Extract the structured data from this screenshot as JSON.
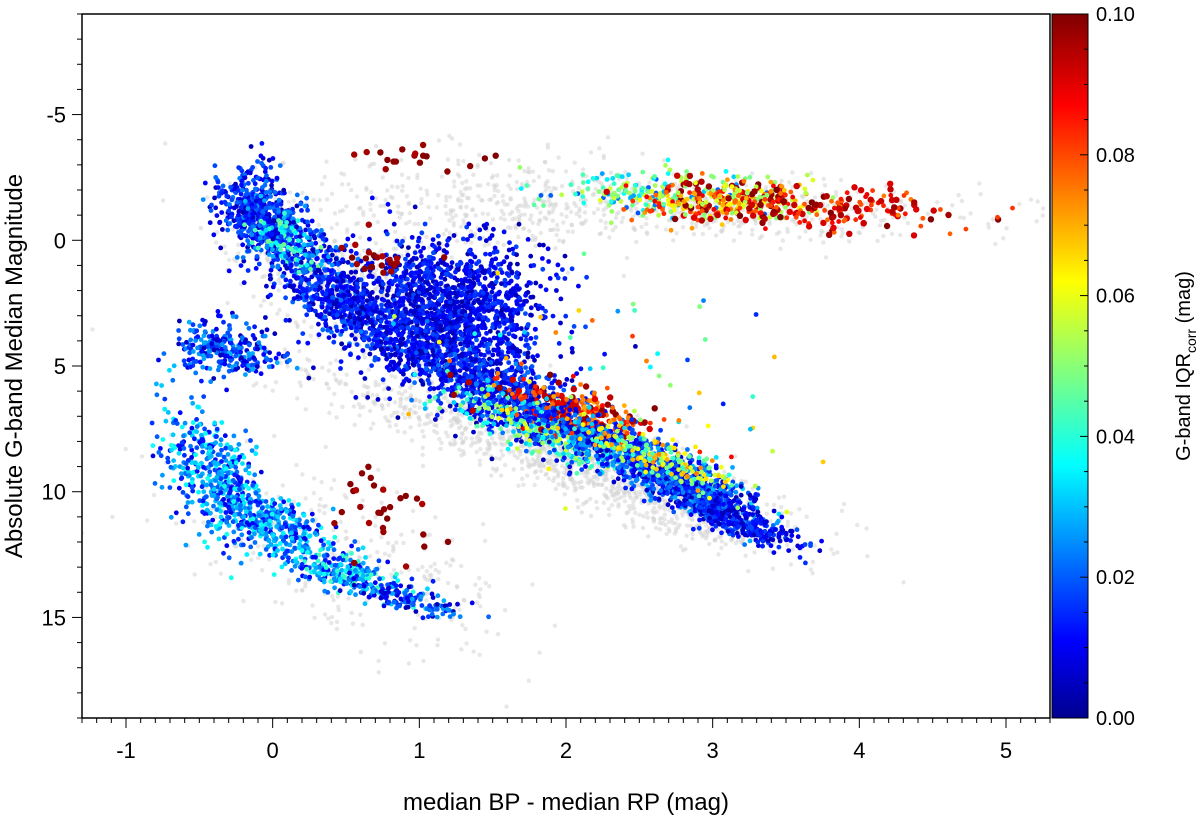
{
  "chart_data": {
    "type": "scatter",
    "xlabel": "median BP - median RP (mag)",
    "ylabel": "Absolute G-band Median Magnitude",
    "xlim": [
      -1.3,
      5.3
    ],
    "ylim": [
      19,
      -9
    ],
    "y_inverted": true,
    "grid": false,
    "x_ticks": [
      -1,
      0,
      1,
      2,
      3,
      4,
      5
    ],
    "x_tick_labels": [
      "-1",
      "0",
      "1",
      "2",
      "3",
      "4",
      "5"
    ],
    "y_ticks": [
      -5,
      0,
      5,
      10,
      15
    ],
    "y_tick_labels": [
      "-5",
      "0",
      "5",
      "10",
      "15"
    ],
    "colorbar": {
      "label_main": "G-band IQR",
      "label_sub": "corr",
      "label_unit": " (mag)",
      "range": [
        0.0,
        0.1
      ],
      "ticks": [
        0.0,
        0.02,
        0.04,
        0.06,
        0.08,
        0.1
      ],
      "tick_labels": [
        "0.00",
        "0.02",
        "0.04",
        "0.06",
        "0.08",
        "0.10"
      ],
      "colormap": "jet"
    },
    "background_color": "#d4d4d4",
    "series": [
      {
        "regions": [
          {
            "x": 1.8,
            "y": 8.0,
            "sx": 0.75,
            "sy": 1.4,
            "rho": 0.85,
            "iqr": [
              0.005,
              0.03
            ],
            "n": 900,
            "layer": "bg"
          },
          {
            "x": 2.7,
            "y": 10.5,
            "sx": 0.5,
            "sy": 1.1,
            "rho": 0.8,
            "iqr": [
              0.005,
              0.03
            ],
            "n": 500,
            "layer": "bg"
          },
          {
            "x": 0.6,
            "y": 2.0,
            "sx": 0.45,
            "sy": 1.8,
            "rho": 0.6,
            "iqr": [
              0.005,
              0.03
            ],
            "n": 600,
            "layer": "bg"
          },
          {
            "x": 1.6,
            "y": -1.5,
            "sx": 0.6,
            "sy": 1.0,
            "rho": 0.0,
            "iqr": [
              0.005,
              0.03
            ],
            "n": 350,
            "layer": "bg"
          },
          {
            "x": 3.2,
            "y": -1.2,
            "sx": 0.9,
            "sy": 0.6,
            "rho": 0.0,
            "iqr": [
              0.005,
              0.03
            ],
            "n": 400,
            "layer": "bg"
          },
          {
            "x": 0.5,
            "y": 12.5,
            "sx": 0.6,
            "sy": 1.8,
            "rho": 0.6,
            "iqr": [
              0.005,
              0.03
            ],
            "n": 300,
            "layer": "bg"
          },
          {
            "x": -0.1,
            "y": -1.2,
            "sx": 0.13,
            "sy": 0.8,
            "rho": 0.2,
            "iqr": [
              0.005,
              0.025
            ],
            "n": 450
          },
          {
            "x": 0.15,
            "y": 0.3,
            "sx": 0.2,
            "sy": 0.9,
            "rho": 0.7,
            "iqr": [
              0.005,
              0.03
            ],
            "n": 380
          },
          {
            "x": 0.08,
            "y": 0.0,
            "sx": 0.12,
            "sy": 0.6,
            "rho": 0.5,
            "iqr": [
              0.03,
              0.05
            ],
            "n": 70
          },
          {
            "x": 0.5,
            "y": 2.8,
            "sx": 0.25,
            "sy": 0.9,
            "rho": 0.75,
            "iqr": [
              0.005,
              0.025
            ],
            "n": 420
          },
          {
            "x": 1.15,
            "y": 3.3,
            "sx": 0.35,
            "sy": 1.5,
            "rho": 0.3,
            "iqr": [
              0.003,
              0.02
            ],
            "n": 1300
          },
          {
            "x": 1.3,
            "y": 2.0,
            "sx": 0.3,
            "sy": 1.0,
            "rho": 0.0,
            "iqr": [
              0.005,
              0.02
            ],
            "n": 420
          },
          {
            "x": 1.7,
            "y": 6.5,
            "sx": 0.4,
            "sy": 1.2,
            "rho": 0.8,
            "iqr": [
              0.005,
              0.025
            ],
            "n": 800
          },
          {
            "x": 1.85,
            "y": 7.6,
            "sx": 0.3,
            "sy": 0.8,
            "rho": 0.8,
            "iqr": [
              0.03,
              0.06
            ],
            "n": 260
          },
          {
            "x": 2.05,
            "y": 6.8,
            "sx": 0.28,
            "sy": 0.6,
            "rho": 0.7,
            "iqr": [
              0.07,
              0.1
            ],
            "n": 230
          },
          {
            "x": 2.45,
            "y": 8.6,
            "sx": 0.35,
            "sy": 0.9,
            "rho": 0.85,
            "iqr": [
              0.005,
              0.035
            ],
            "n": 650
          },
          {
            "x": 2.9,
            "y": 10.2,
            "sx": 0.28,
            "sy": 0.8,
            "rho": 0.85,
            "iqr": [
              0.005,
              0.03
            ],
            "n": 520
          },
          {
            "x": 3.2,
            "y": 11.3,
            "sx": 0.2,
            "sy": 0.5,
            "rho": 0.8,
            "iqr": [
              0.005,
              0.02
            ],
            "n": 200
          },
          {
            "x": 2.6,
            "y": 8.6,
            "sx": 0.28,
            "sy": 0.7,
            "rho": 0.85,
            "iqr": [
              0.04,
              0.075
            ],
            "n": 180
          },
          {
            "x": 2.55,
            "y": -1.9,
            "sx": 0.35,
            "sy": 0.45,
            "rho": 0.0,
            "iqr": [
              0.02,
              0.06
            ],
            "n": 170
          },
          {
            "x": 3.1,
            "y": -1.6,
            "sx": 0.35,
            "sy": 0.4,
            "rho": 0.0,
            "iqr": [
              0.05,
              0.1
            ],
            "n": 280
          },
          {
            "x": 3.8,
            "y": -1.2,
            "sx": 0.45,
            "sy": 0.45,
            "rho": 0.0,
            "iqr": [
              0.075,
              0.1
            ],
            "n": 150
          },
          {
            "x": -0.4,
            "y": 4.3,
            "sx": 0.13,
            "sy": 0.55,
            "rho": 0.0,
            "iqr": [
              0.005,
              0.03
            ],
            "n": 170
          },
          {
            "x": -0.15,
            "y": 4.6,
            "sx": 0.14,
            "sy": 0.5,
            "rho": 0.0,
            "iqr": [
              0.005,
              0.03
            ],
            "n": 90
          },
          {
            "x": -0.4,
            "y": 9.3,
            "sx": 0.17,
            "sy": 1.3,
            "rho": 0.5,
            "iqr": [
              0.01,
              0.04
            ],
            "n": 420
          },
          {
            "x": 0.0,
            "y": 11.3,
            "sx": 0.2,
            "sy": 0.7,
            "rho": 0.6,
            "iqr": [
              0.01,
              0.04
            ],
            "n": 320
          },
          {
            "x": 0.5,
            "y": 13.3,
            "sx": 0.25,
            "sy": 0.55,
            "rho": 0.7,
            "iqr": [
              0.01,
              0.045
            ],
            "n": 260
          },
          {
            "x": 0.95,
            "y": 14.3,
            "sx": 0.18,
            "sy": 0.35,
            "rho": 0.7,
            "iqr": [
              0.005,
              0.03
            ],
            "n": 110
          },
          {
            "x": 0.7,
            "y": 0.8,
            "sx": 0.14,
            "sy": 0.4,
            "rho": 0.0,
            "iqr": [
              0.095,
              0.1
            ],
            "n": 22
          },
          {
            "x": 1.05,
            "y": -3.3,
            "sx": 0.3,
            "sy": 0.4,
            "rho": 0.0,
            "iqr": [
              0.095,
              0.1
            ],
            "n": 18
          },
          {
            "x": 0.7,
            "y": 10.3,
            "sx": 0.22,
            "sy": 1.0,
            "rho": 0.4,
            "iqr": [
              0.095,
              0.1
            ],
            "n": 28
          },
          {
            "x": 2.2,
            "y": 5.5,
            "sx": 0.7,
            "sy": 2.5,
            "rho": 0.3,
            "iqr": [
              0.005,
              0.1
            ],
            "n": 70
          }
        ]
      }
    ]
  }
}
